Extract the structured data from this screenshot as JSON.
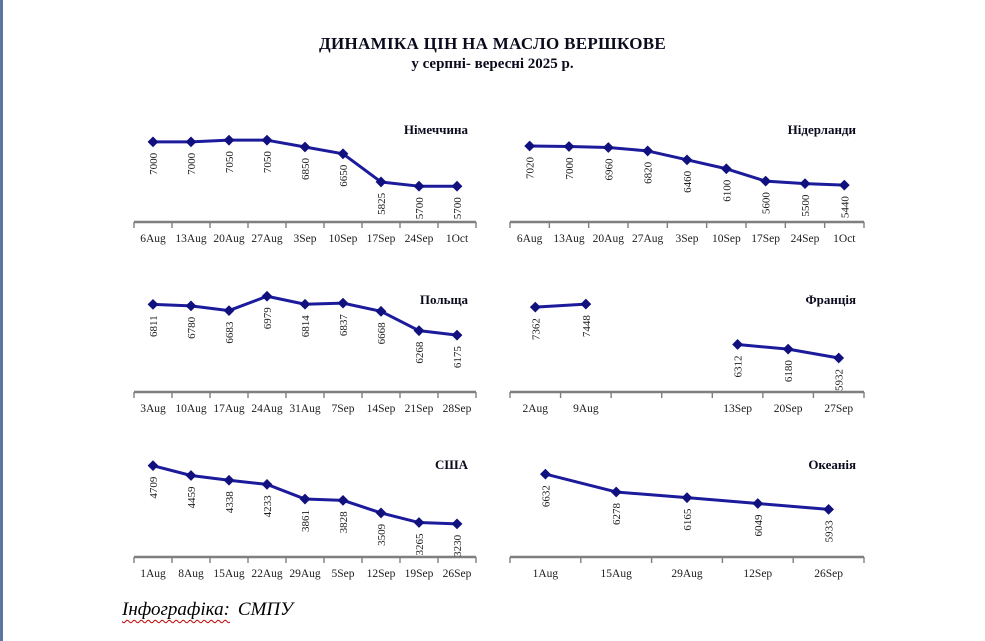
{
  "page": {
    "title_line1": "ДИНАМІКА ЦІН НА МАСЛО ВЕРШКОВЕ",
    "title_line2": "у серпні- вересні 2025 р.",
    "footer": {
      "label": "Інфографіка:",
      "value": "СМПУ"
    }
  },
  "colors": {
    "line": "#1b1b9c",
    "marker": "#10107e",
    "axis": "#7f7f7f",
    "label_text": "#1c1c1c",
    "title_text": "#0b0b1e",
    "page_edge": "#5b779f",
    "squiggle_red": "#c00000"
  },
  "chart_data": [
    {
      "type": "line",
      "title": "Німеччина",
      "categories": [
        "6Aug",
        "13Aug",
        "20Aug",
        "27Aug",
        "3Sep",
        "10Sep",
        "17Sep",
        "24Sep",
        "1Oct"
      ],
      "values": [
        7000,
        7000,
        7050,
        7050,
        6850,
        6650,
        5825,
        5700,
        5700
      ],
      "ylim": [
        4650,
        7700
      ],
      "grid": false,
      "legend": "none"
    },
    {
      "type": "line",
      "title": "Нідерланди",
      "categories": [
        "6Aug",
        "13Aug",
        "20Aug",
        "27Aug",
        "3Sep",
        "10Sep",
        "17Sep",
        "24Sep",
        "1Oct"
      ],
      "values": [
        7020,
        7000,
        6960,
        6820,
        6460,
        6100,
        5600,
        5500,
        5440
      ],
      "ylim": [
        3950,
        8150
      ],
      "grid": false,
      "legend": "none"
    },
    {
      "type": "line",
      "title": "Польща",
      "categories": [
        "3Aug",
        "10Aug",
        "17Aug",
        "24Aug",
        "31Aug",
        "7Sep",
        "14Sep",
        "21Sep",
        "28Sep"
      ],
      "values": [
        6811,
        6780,
        6683,
        6979,
        6814,
        6837,
        6668,
        6268,
        6175
      ],
      "ylim": [
        5000,
        7150
      ],
      "grid": false,
      "legend": "none"
    },
    {
      "type": "line",
      "title": "Франція",
      "categories": [
        "2Aug",
        "9Aug",
        "",
        "",
        "13Sep",
        "20Sep",
        "27Sep"
      ],
      "values": [
        7362,
        7448,
        null,
        null,
        6312,
        6180,
        5932
      ],
      "ylim": [
        4975,
        7900
      ],
      "grid": false,
      "legend": "none"
    },
    {
      "type": "line",
      "title": "США",
      "categories": [
        "1Aug",
        "8Aug",
        "15Aug",
        "22Aug",
        "29Aug",
        "5Sep",
        "12Sep",
        "19Sep",
        "26Sep"
      ],
      "values": [
        4709,
        4459,
        4338,
        4233,
        3861,
        3828,
        3509,
        3265,
        3230
      ],
      "ylim": [
        2390,
        5030
      ],
      "grid": false,
      "legend": "none"
    },
    {
      "type": "line",
      "title": "Океанія",
      "categories": [
        "1Aug",
        "15Aug",
        "29Aug",
        "12Sep",
        "26Sep"
      ],
      "values": [
        6632,
        6278,
        6165,
        6049,
        5933
      ],
      "ylim": [
        4990,
        7050
      ],
      "grid": false,
      "legend": "none"
    }
  ]
}
